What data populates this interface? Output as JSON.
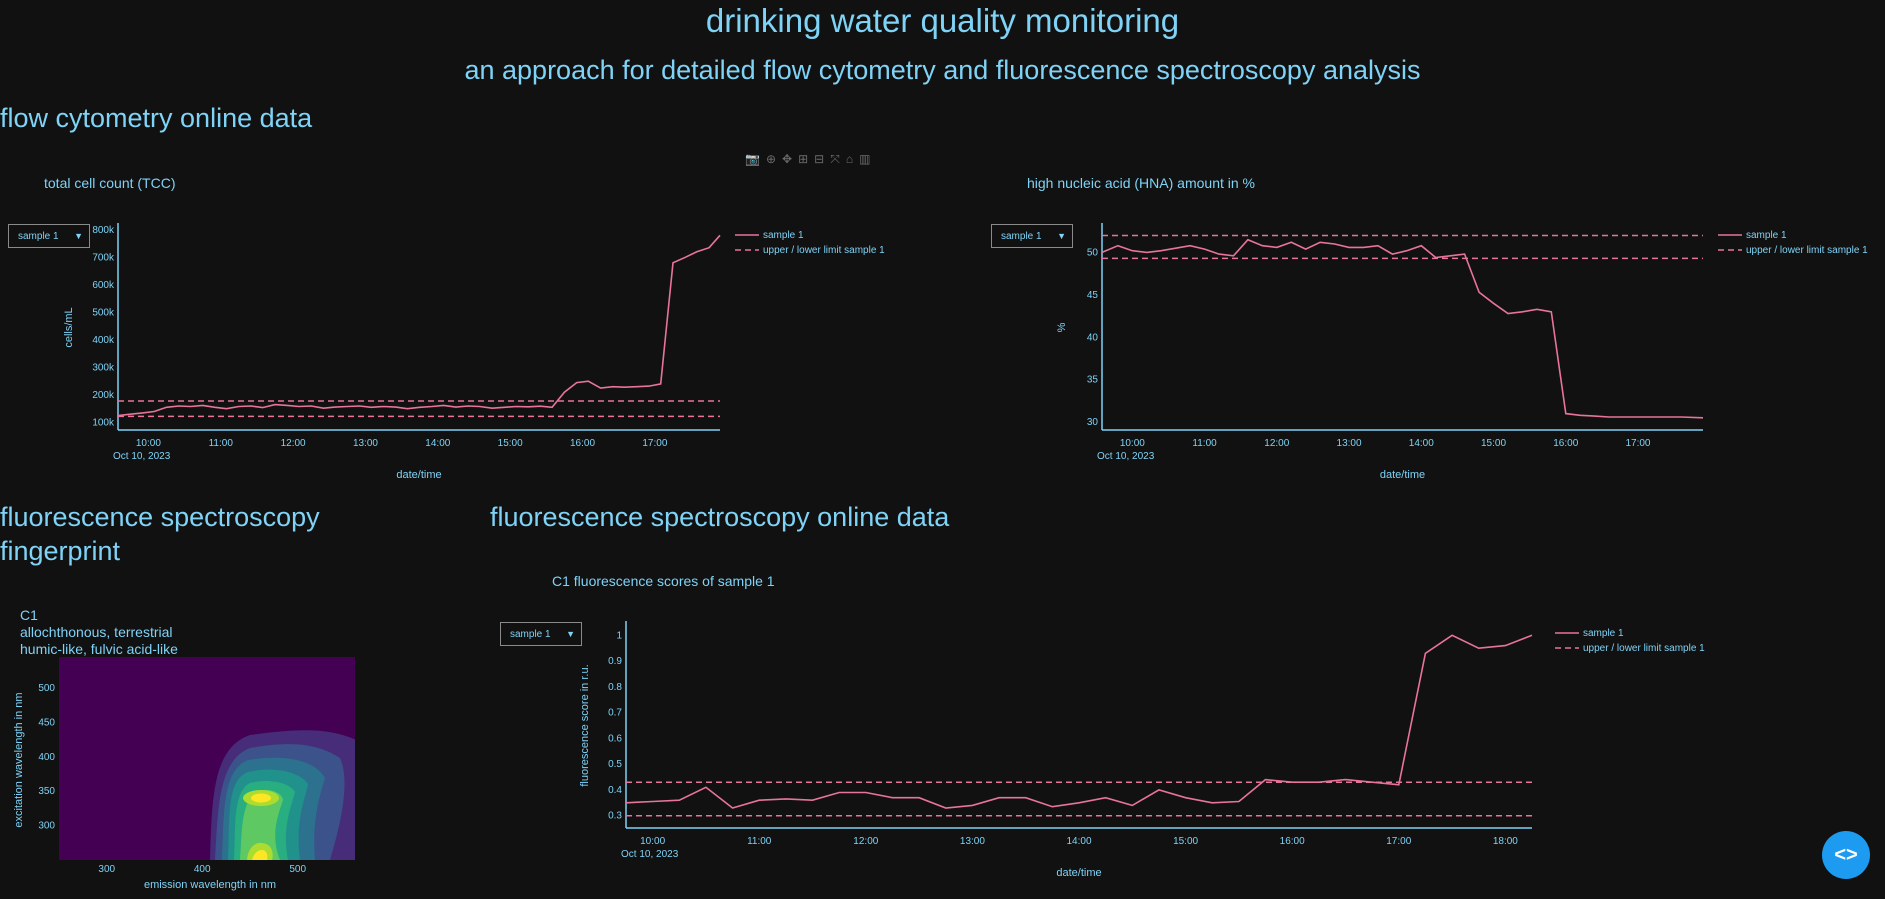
{
  "header": {
    "title": "drinking water quality monitoring",
    "subtitle": "an approach for detailed flow cytometry and fluorescence spectroscopy analysis"
  },
  "sections": {
    "flow": "flow cytometry online data",
    "fingerprint_line1": "fluorescence spectroscopy",
    "fingerprint_line2": "fingerprint",
    "fluor_online": "fluorescence spectroscopy online data"
  },
  "modebar": {
    "icons": [
      "camera-icon",
      "zoom-icon",
      "pan-icon",
      "zoom-in-icon",
      "zoom-out-icon",
      "autoscale-icon",
      "reset-axes-icon",
      "plotly-logo-icon"
    ],
    "glyphs": [
      "📷",
      "⊕",
      "✥",
      "⊞",
      "⊟",
      "⤧",
      "⌂",
      "▥"
    ]
  },
  "colors": {
    "background": "#111111",
    "text": "#7fd3f7",
    "series": "#e8749c",
    "button": "#1d9bf0"
  },
  "dropdowns": {
    "tcc": "sample 1",
    "hna": "sample 1",
    "c1": "sample 1"
  },
  "fingerprint": {
    "component": "C1",
    "desc1": "allochthonous, terrestrial",
    "desc2": "humic-like, fulvic acid-like",
    "xlabel": "emission wavelength in nm",
    "ylabel": "excitation wavelength in nm",
    "xticks": [
      "300",
      "400",
      "500"
    ],
    "yticks": [
      "300",
      "350",
      "400",
      "450",
      "500"
    ],
    "colormap": "viridis"
  },
  "chart_data": [
    {
      "type": "line",
      "title": "total cell count (TCC)",
      "xlabel": "date/time",
      "ylabel": "cells/mL",
      "date_note": "Oct 10, 2023",
      "xticks": [
        "10:00",
        "11:00",
        "12:00",
        "13:00",
        "14:00",
        "15:00",
        "16:00",
        "17:00"
      ],
      "yticks": [
        "100k",
        "200k",
        "300k",
        "400k",
        "500k",
        "600k",
        "700k",
        "800k"
      ],
      "xlim": [
        9.58,
        17.9
      ],
      "ylim": [
        80000,
        810000
      ],
      "legend": [
        "sample 1",
        "upper / lower  limit sample 1"
      ],
      "series": [
        {
          "name": "sample 1",
          "x": [
            9.58,
            9.75,
            9.92,
            10.08,
            10.25,
            10.42,
            10.58,
            10.75,
            10.92,
            11.08,
            11.25,
            11.42,
            11.58,
            11.75,
            11.92,
            12.08,
            12.25,
            12.42,
            12.58,
            12.75,
            12.92,
            13.08,
            13.25,
            13.42,
            13.58,
            13.75,
            13.92,
            14.08,
            14.25,
            14.42,
            14.58,
            14.75,
            14.92,
            15.08,
            15.25,
            15.42,
            15.58,
            15.75,
            15.92,
            16.08,
            16.25,
            16.42,
            16.58,
            16.75,
            16.92,
            17.08,
            17.25,
            17.42,
            17.58,
            17.75,
            17.9
          ],
          "y": [
            125000,
            130000,
            135000,
            140000,
            155000,
            160000,
            158000,
            162000,
            155000,
            150000,
            158000,
            160000,
            154000,
            165000,
            162000,
            158000,
            160000,
            152000,
            156000,
            158000,
            160000,
            155000,
            158000,
            156000,
            150000,
            155000,
            158000,
            162000,
            156000,
            160000,
            158000,
            152000,
            155000,
            158000,
            157000,
            159000,
            155000,
            210000,
            245000,
            250000,
            225000,
            230000,
            228000,
            230000,
            232000,
            240000,
            680000,
            700000,
            720000,
            735000,
            780000
          ]
        }
      ],
      "limits": {
        "upper": 178000,
        "lower": 122000
      }
    },
    {
      "type": "line",
      "title": "high nucleic acid (HNA) amount in %",
      "xlabel": "date/time",
      "ylabel": "%",
      "date_note": "Oct 10, 2023",
      "xticks": [
        "10:00",
        "11:00",
        "12:00",
        "13:00",
        "14:00",
        "15:00",
        "16:00",
        "17:00"
      ],
      "yticks": [
        "30",
        "35",
        "40",
        "45",
        "50"
      ],
      "xlim": [
        9.58,
        17.9
      ],
      "ylim": [
        29.3,
        53
      ],
      "legend": [
        "sample 1",
        "upper / lower  limit sample 1"
      ],
      "series": [
        {
          "name": "sample 1",
          "x": [
            9.58,
            9.8,
            10.0,
            10.2,
            10.4,
            10.6,
            10.8,
            11.0,
            11.2,
            11.4,
            11.6,
            11.8,
            12.0,
            12.2,
            12.4,
            12.6,
            12.8,
            13.0,
            13.2,
            13.4,
            13.6,
            13.8,
            14.0,
            14.2,
            14.4,
            14.6,
            14.8,
            15.0,
            15.2,
            15.4,
            15.6,
            15.8,
            16.0,
            16.2,
            16.4,
            16.6,
            16.7,
            16.8,
            17.0,
            17.2,
            17.4,
            17.6,
            17.9
          ],
          "y": [
            50.0,
            50.8,
            50.2,
            50.0,
            50.2,
            50.5,
            50.8,
            50.4,
            49.8,
            49.6,
            51.5,
            50.8,
            50.6,
            51.2,
            50.4,
            51.2,
            51.0,
            50.6,
            50.6,
            50.8,
            49.8,
            50.2,
            50.8,
            49.4,
            49.6,
            49.8,
            45.3,
            44.0,
            42.8,
            43.0,
            43.3,
            43.0,
            31.0,
            30.8,
            30.7,
            30.6,
            30.6,
            30.6,
            30.6,
            30.6,
            30.6,
            30.6,
            30.5
          ]
        }
      ],
      "limits": {
        "upper": 52.0,
        "lower": 49.3
      }
    },
    {
      "type": "line",
      "title": "C1 fluorescence scores of sample 1",
      "xlabel": "date/time",
      "ylabel": "fluorescence score in r.u.",
      "date_note": "Oct 10, 2023",
      "xticks": [
        "10:00",
        "11:00",
        "12:00",
        "13:00",
        "14:00",
        "15:00",
        "16:00",
        "17:00",
        "18:00"
      ],
      "yticks": [
        "0.3",
        "0.4",
        "0.5",
        "0.6",
        "0.7",
        "0.8",
        "0.9",
        "1"
      ],
      "xlim": [
        9.75,
        18.25
      ],
      "ylim": [
        0.26,
        1.04
      ],
      "legend": [
        "sample 1",
        "upper / lower  limit sample 1"
      ],
      "series": [
        {
          "name": "sample 1",
          "x": [
            9.75,
            10.0,
            10.25,
            10.5,
            10.75,
            11.0,
            11.25,
            11.5,
            11.75,
            12.0,
            12.25,
            12.5,
            12.75,
            13.0,
            13.25,
            13.5,
            13.75,
            14.0,
            14.25,
            14.5,
            14.75,
            15.0,
            15.25,
            15.5,
            15.75,
            16.0,
            16.25,
            16.5,
            16.75,
            17.0,
            17.25,
            17.5,
            17.75,
            18.0,
            18.25
          ],
          "y": [
            0.35,
            0.355,
            0.36,
            0.41,
            0.33,
            0.36,
            0.365,
            0.36,
            0.39,
            0.39,
            0.37,
            0.37,
            0.33,
            0.34,
            0.37,
            0.37,
            0.335,
            0.35,
            0.37,
            0.34,
            0.4,
            0.37,
            0.35,
            0.355,
            0.44,
            0.43,
            0.43,
            0.44,
            0.43,
            0.42,
            0.93,
            1.0,
            0.95,
            0.96,
            1.0
          ]
        }
      ],
      "limits": {
        "upper": 0.43,
        "lower": 0.3
      }
    }
  ]
}
